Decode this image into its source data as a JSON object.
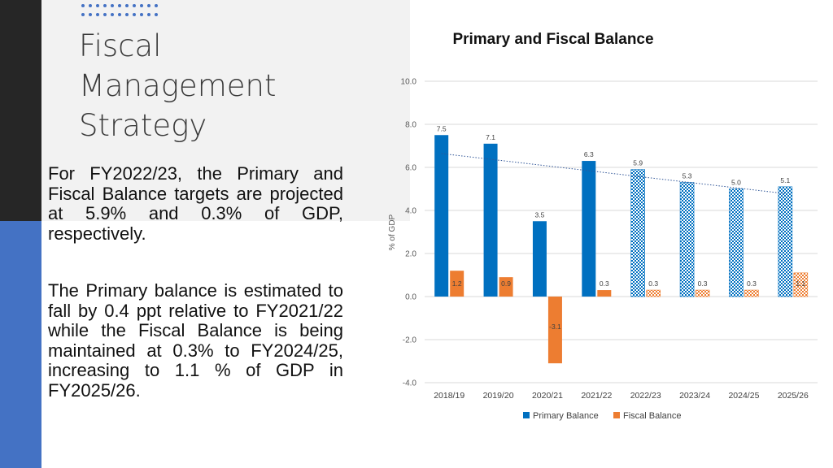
{
  "slide": {
    "title_lines": [
      "Fiscal",
      "Management",
      "Strategy"
    ],
    "paragraph1": "For FY2022/23, the Primary and Fiscal Balance targets are projected at 5.9% and 0.3% of GDP, respectively.",
    "paragraph2": "The Primary balance is estimated to fall by 0.4 ppt relative to FY2021/22 while the Fiscal Balance is being maintained at 0.3% to FY2024/25, increasing to 1.1 % of GDP in FY2025/26."
  },
  "colors": {
    "primary_balance": "#0070c0",
    "fiscal_balance": "#ed7d31",
    "accent": "#4472c4",
    "dark_bar": "#262626"
  },
  "chart_data": {
    "type": "bar",
    "title": "Primary and Fiscal Balance",
    "xlabel": "",
    "ylabel": "% of GDP",
    "ylim": [
      -4.0,
      10.0
    ],
    "yticks": [
      "10.0",
      "8.0",
      "6.0",
      "4.0",
      "2.0",
      "0.0",
      "-2.0",
      "-4.0"
    ],
    "categories": [
      "2018/19",
      "2019/20",
      "2020/21",
      "2021/22",
      "2022/23",
      "2023/24",
      "2024/25",
      "2025/26"
    ],
    "projected_from_index": 4,
    "series": [
      {
        "name": "Primary Balance",
        "values": [
          7.5,
          7.1,
          3.5,
          6.3,
          5.9,
          5.3,
          5.0,
          5.1
        ],
        "labels": [
          "7.5",
          "7.1",
          "3.5",
          "6.3",
          "5.9",
          "5.3",
          "5.0",
          "5.1"
        ]
      },
      {
        "name": "Fiscal Balance",
        "values": [
          1.2,
          0.9,
          -3.1,
          0.3,
          0.3,
          0.3,
          0.3,
          1.1
        ],
        "labels": [
          "1.2",
          "0.9",
          "-3.1",
          "0.3",
          "0.3",
          "0.3",
          "0.3",
          "1.1"
        ]
      }
    ],
    "trendline": {
      "series": "Primary Balance",
      "style": "dotted linear"
    },
    "grid": true,
    "legend_position": "bottom"
  }
}
